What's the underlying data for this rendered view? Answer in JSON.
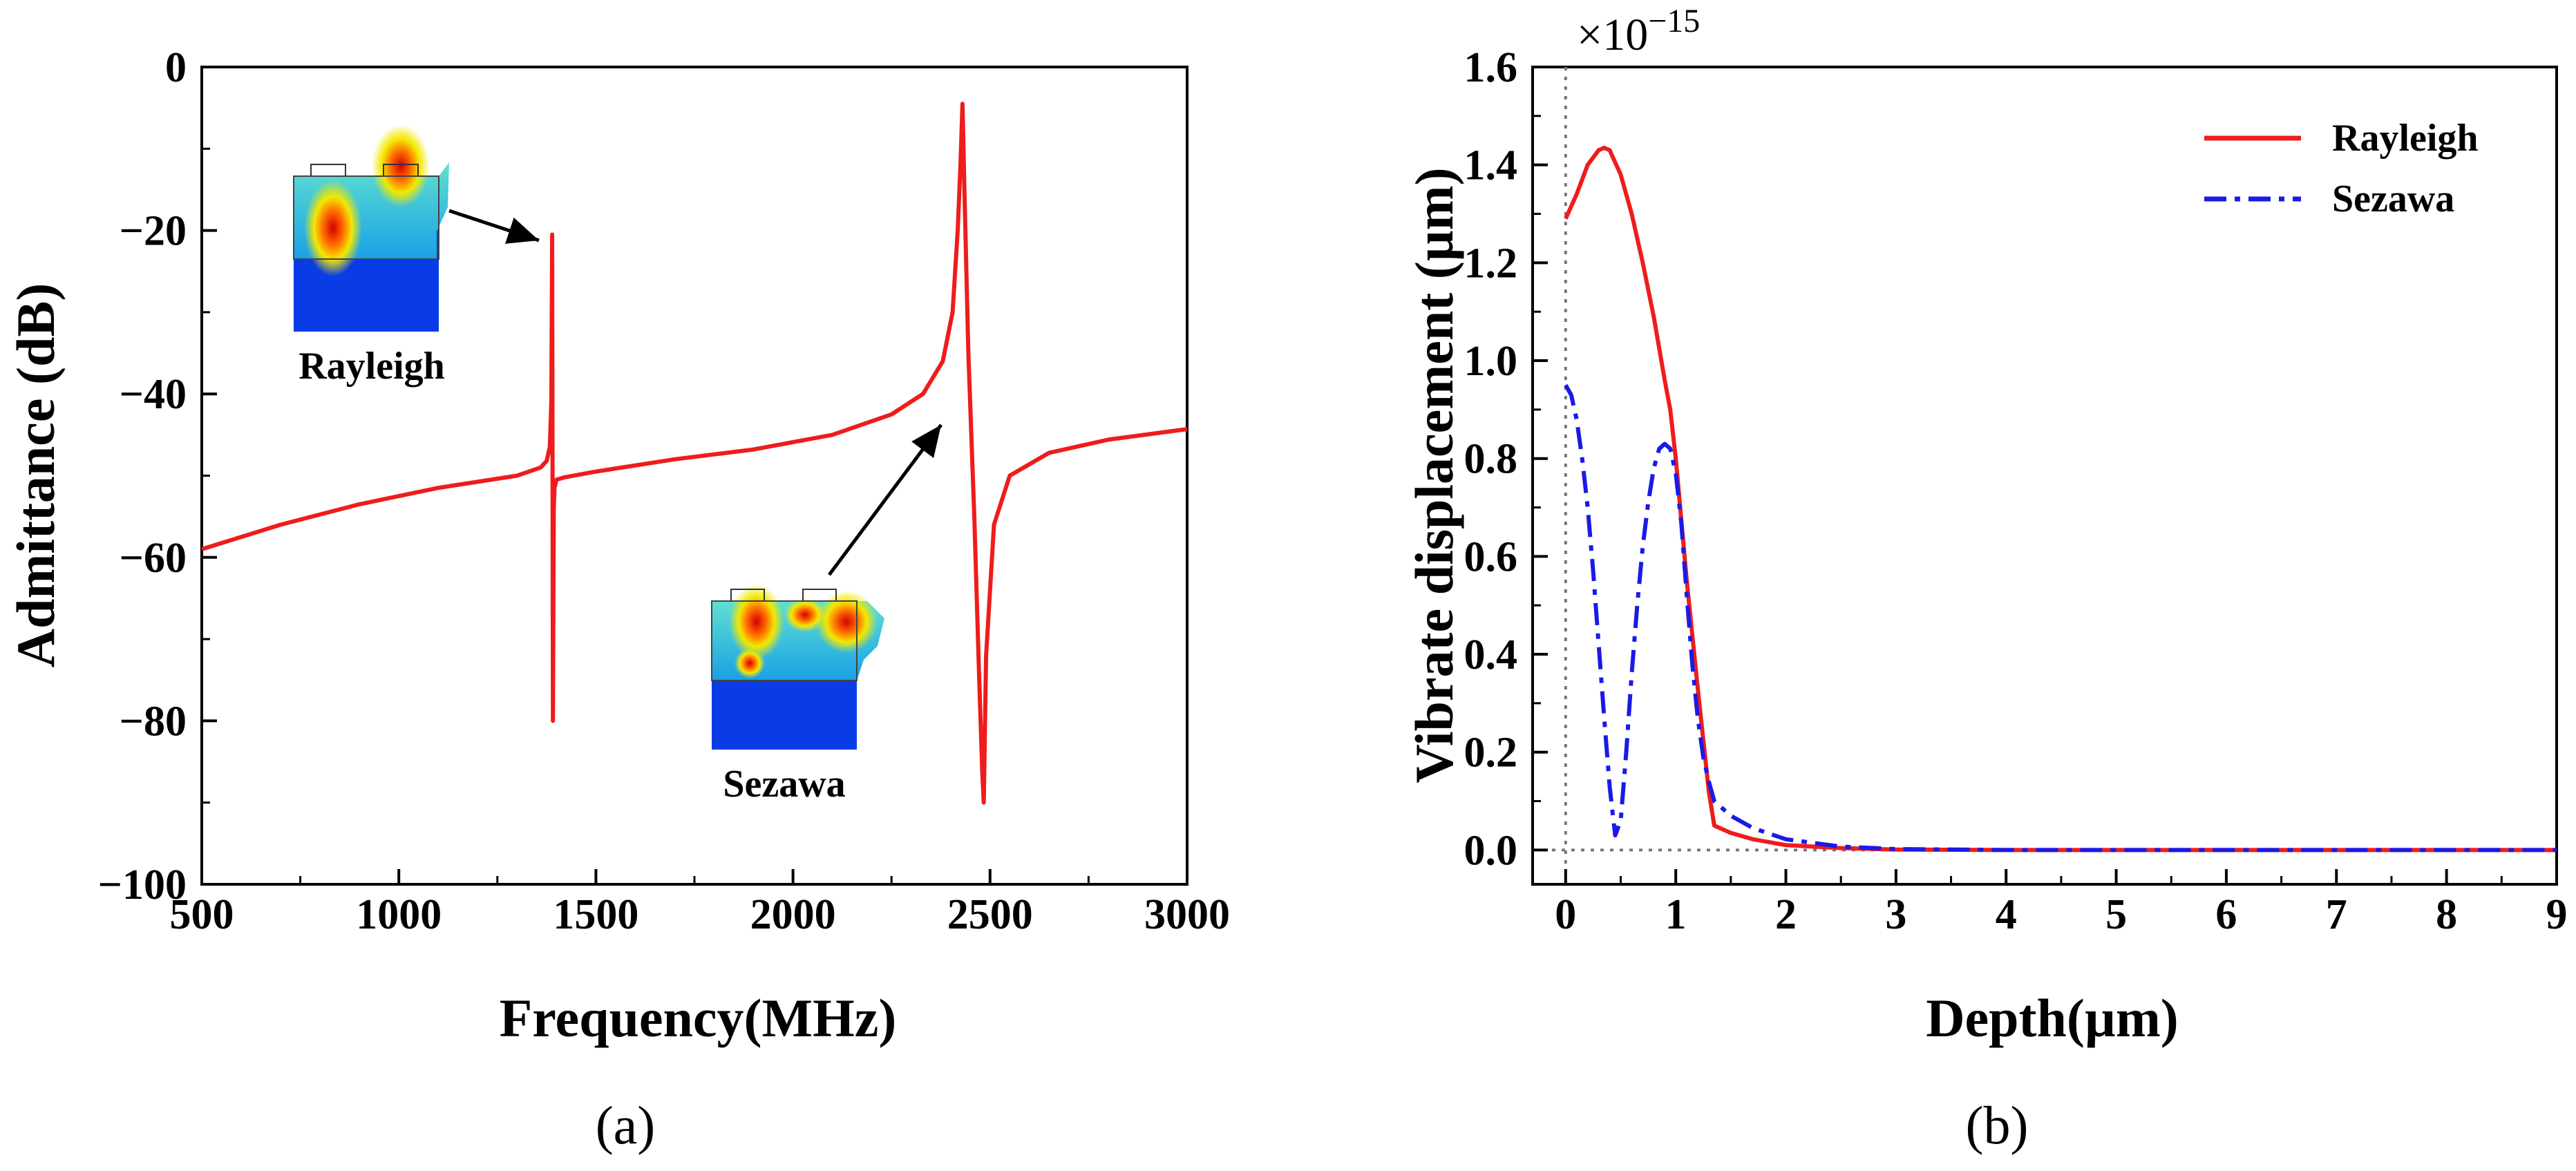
{
  "chart_data": [
    {
      "panel_label": "(a)",
      "type": "line",
      "xlabel": "Frequency(MHz)",
      "ylabel": "Admittance (dB)",
      "xlim": [
        500,
        3000
      ],
      "ylim": [
        -100,
        0
      ],
      "xticks": [
        500,
        1000,
        1500,
        2000,
        2500,
        3000
      ],
      "yticks": [
        0,
        -20,
        -40,
        -60,
        -80,
        -100
      ],
      "xtick_labels": [
        "500",
        "1000",
        "1500",
        "2000",
        "2500",
        "3000"
      ],
      "ytick_labels": [
        "0",
        "−20",
        "−40",
        "−60",
        "−80",
        "−100"
      ],
      "series": [
        {
          "name": "Admittance",
          "color": "#ee1c1c",
          "x": [
            500,
            700,
            900,
            1100,
            1300,
            1360,
            1375,
            1383,
            1387,
            1389,
            1391,
            1393,
            1395,
            1400,
            1420,
            1500,
            1700,
            1900,
            2100,
            2250,
            2330,
            2380,
            2405,
            2418,
            2425,
            2430,
            2435,
            2445,
            2460,
            2472,
            2480,
            2484,
            2490,
            2510,
            2550,
            2650,
            2800,
            3000
          ],
          "y": [
            -59,
            -56,
            -53.5,
            -51.5,
            -50,
            -49,
            -48.2,
            -46.5,
            -41,
            -20.5,
            -80,
            -54,
            -51.5,
            -50.5,
            -50.2,
            -49.5,
            -48,
            -46.8,
            -45,
            -42.5,
            -40,
            -36,
            -30,
            -20,
            -12,
            -4.5,
            -15,
            -35,
            -55,
            -74,
            -86,
            -90,
            -72,
            -56,
            -50,
            -47.2,
            -45.6,
            -44.3
          ]
        }
      ],
      "insets": [
        {
          "label": "Rayleigh",
          "arrow_target": [
            1380,
            -21
          ]
        },
        {
          "label": "Sezawa",
          "arrow_target": [
            2380,
            -43
          ]
        }
      ]
    },
    {
      "panel_label": "(b)",
      "type": "line",
      "xlabel": "Depth(µm)",
      "ylabel": "Vibrate displacement  (µm)",
      "scale_label": "×10",
      "scale_exponent": "−15",
      "xlim": [
        -0.3,
        9
      ],
      "ylim": [
        -0.07,
        1.6
      ],
      "xticks": [
        0,
        1,
        2,
        3,
        4,
        5,
        6,
        7,
        8,
        9
      ],
      "yticks": [
        0.0,
        0.2,
        0.4,
        0.6,
        0.8,
        1.0,
        1.2,
        1.4,
        1.6
      ],
      "xtick_labels": [
        "0",
        "1",
        "2",
        "3",
        "4",
        "5",
        "6",
        "7",
        "8",
        "9"
      ],
      "ytick_labels": [
        "0.0",
        "0.2",
        "0.4",
        "0.6",
        "0.8",
        "1.0",
        "1.2",
        "1.4",
        "1.6"
      ],
      "legend_position": "top-right",
      "series": [
        {
          "name": "Rayleigh",
          "color": "#ee1c1c",
          "dash": "solid",
          "x": [
            0,
            0.1,
            0.2,
            0.3,
            0.35,
            0.4,
            0.5,
            0.6,
            0.7,
            0.8,
            0.9,
            0.95,
            1.0,
            1.1,
            1.2,
            1.3,
            1.35,
            1.5,
            1.7,
            2.0,
            2.5,
            3.0,
            4.0,
            9.0
          ],
          "y": [
            1.29,
            1.34,
            1.4,
            1.43,
            1.435,
            1.43,
            1.38,
            1.3,
            1.2,
            1.09,
            0.96,
            0.9,
            0.8,
            0.55,
            0.33,
            0.12,
            0.05,
            0.035,
            0.022,
            0.01,
            0.004,
            0.001,
            0.0,
            0.0
          ]
        },
        {
          "name": "Sezawa",
          "color": "#1a1ae6",
          "dash": "dashdot",
          "x": [
            0,
            0.05,
            0.1,
            0.15,
            0.2,
            0.25,
            0.3,
            0.35,
            0.4,
            0.45,
            0.5,
            0.55,
            0.6,
            0.65,
            0.7,
            0.75,
            0.8,
            0.85,
            0.9,
            0.95,
            1.0,
            1.05,
            1.1,
            1.15,
            1.2,
            1.25,
            1.3,
            1.35,
            1.5,
            1.7,
            2.0,
            2.5,
            3.0,
            4.0,
            9.0
          ],
          "y": [
            0.95,
            0.93,
            0.88,
            0.8,
            0.7,
            0.57,
            0.42,
            0.27,
            0.13,
            0.03,
            0.06,
            0.2,
            0.36,
            0.5,
            0.62,
            0.71,
            0.78,
            0.82,
            0.83,
            0.82,
            0.77,
            0.67,
            0.52,
            0.38,
            0.27,
            0.19,
            0.14,
            0.1,
            0.07,
            0.045,
            0.022,
            0.007,
            0.002,
            0.0,
            0.0
          ]
        }
      ]
    }
  ]
}
